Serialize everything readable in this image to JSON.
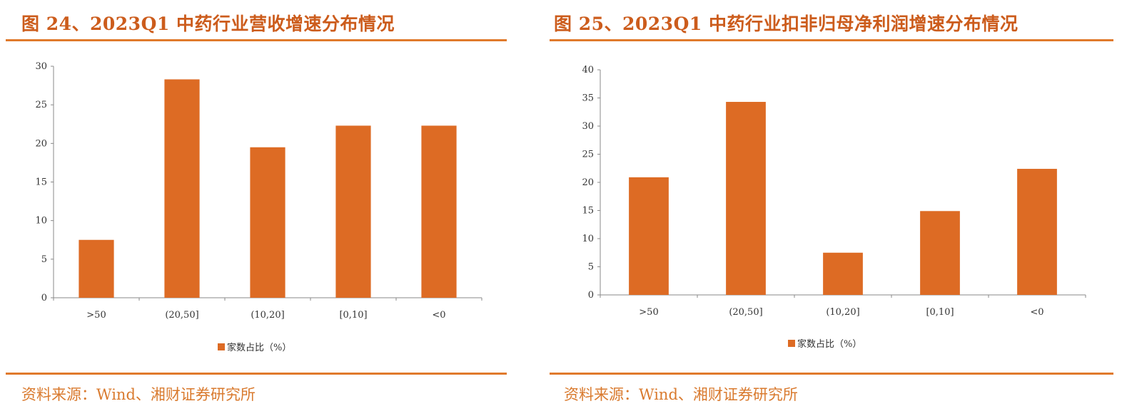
{
  "colors": {
    "accent": "#cc5c1c",
    "rule": "#e07a2c",
    "bar": "#dd6b24",
    "axis": "#888888",
    "source": "#d97a2e"
  },
  "left": {
    "title": "图 24、2023Q1 中药行业营收增速分布情况",
    "source": "资料来源：Wind、湘财证券研究所"
  },
  "right": {
    "title": "图 25、2023Q1 中药行业扣非归母净利润增速分布情况",
    "source": "资料来源：Wind、湘财证券研究所"
  },
  "chart_data": [
    {
      "type": "bar",
      "title": "图 24、2023Q1 中药行业营收增速分布情况",
      "categories": [
        ">50",
        "(20,50]",
        "(10,20]",
        "[0,10]",
        "<0"
      ],
      "series": [
        {
          "name": "家数占比（%）",
          "values": [
            7.5,
            28.3,
            19.5,
            22.3,
            22.3
          ]
        }
      ],
      "ylim": [
        0,
        30
      ],
      "yticks": [
        0,
        5,
        10,
        15,
        20,
        25,
        30
      ],
      "legend": "bottom-center",
      "grid": false
    },
    {
      "type": "bar",
      "title": "图 25、2023Q1 中药行业扣非归母净利润增速分布情况",
      "categories": [
        ">50",
        "(20,50]",
        "(10,20]",
        "[0,10]",
        "<0"
      ],
      "series": [
        {
          "name": "家数占比（%）",
          "values": [
            20.9,
            34.3,
            7.5,
            14.9,
            22.4
          ]
        }
      ],
      "ylim": [
        0,
        40
      ],
      "yticks": [
        0,
        5,
        10,
        15,
        20,
        25,
        30,
        35,
        40
      ],
      "legend": "bottom-center",
      "grid": false
    }
  ]
}
